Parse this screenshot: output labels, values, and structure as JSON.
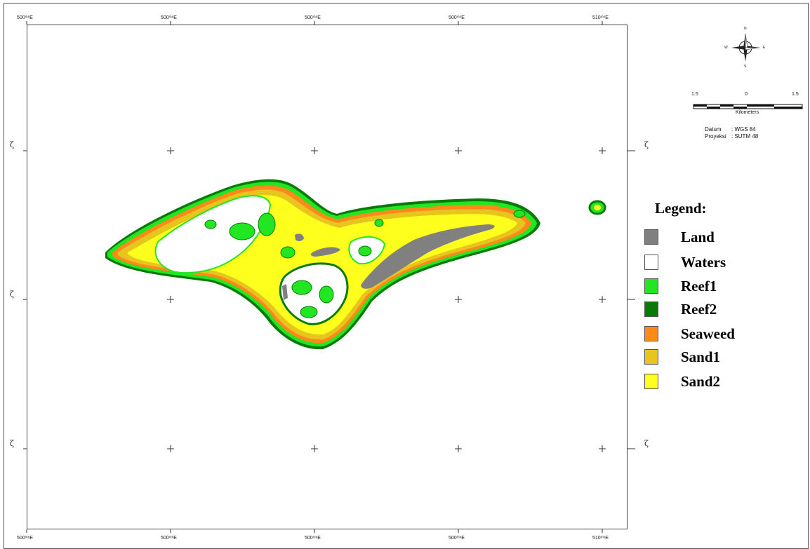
{
  "map": {
    "x_ticks": [
      "500ᵐᵉE",
      "500ᵐᵉE",
      "500ᵐᵉE",
      "500ᵐᵉE",
      "510ᵐᵉE"
    ],
    "y_ticks": [
      "ζ",
      "ζ",
      "ζ"
    ],
    "scale_bar": {
      "left": "1.5",
      "middle": "0",
      "right": "1.5",
      "unit": "Kilometers"
    },
    "compass": {
      "n": "N",
      "s": "S",
      "e": "E",
      "w": "W"
    },
    "datum_key": "Datum",
    "datum_value": ": WGS 84",
    "projection_key": "Proyeksi",
    "projection_value": ": SUTM 48"
  },
  "legend": {
    "title": "Legend:",
    "items": [
      {
        "label": "Land",
        "color": "#808080"
      },
      {
        "label": "Waters",
        "color": "#ffffff"
      },
      {
        "label": "Reef1",
        "color": "#22e622"
      },
      {
        "label": "Reef2",
        "color": "#087a08"
      },
      {
        "label": "Seaweed",
        "color": "#ff8a1a"
      },
      {
        "label": "Sand1",
        "color": "#e8c41e"
      },
      {
        "label": "Sand2",
        "color": "#ffff1e"
      }
    ]
  }
}
